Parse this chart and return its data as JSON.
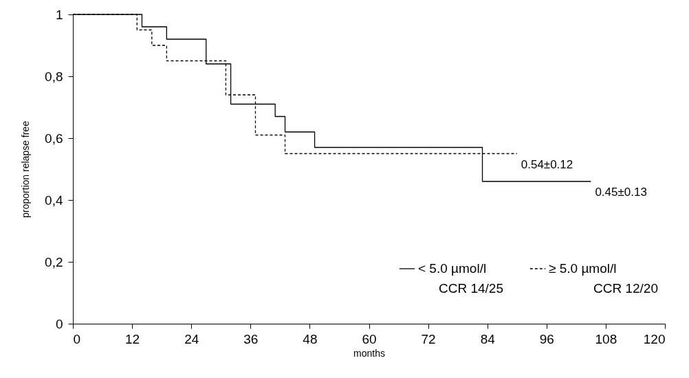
{
  "chart_data": {
    "type": "step",
    "xlabel": "months",
    "ylabel": "proportion relapse free",
    "series": [
      {
        "name": "< 5.0 µmol/l",
        "color": "#000000",
        "line_style": "solid",
        "x": [
          0,
          14,
          19,
          27,
          32,
          41,
          43,
          49,
          83,
          105
        ],
        "values": [
          1,
          0.96,
          0.92,
          0.84,
          0.71,
          0.67,
          0.62,
          0.57,
          0.46,
          0.46
        ]
      },
      {
        "name": "≥ 5.0 µmol/l",
        "color": "#000000",
        "line_style": "dashed",
        "x": [
          0,
          13,
          16,
          19,
          31,
          37,
          43,
          90
        ],
        "values": [
          1,
          0.95,
          0.9,
          0.85,
          0.74,
          0.61,
          0.55,
          0.55
        ]
      }
    ],
    "annotations": [
      {
        "text": "0.54±0.12",
        "x": 90,
        "y": 0.55
      },
      {
        "text": "0.45±0.13",
        "x": 105,
        "y": 0.46
      },
      "CCR 14/25",
      "CCR 12/20"
    ],
    "xlim": [
      0,
      120
    ],
    "xticks": [
      0,
      12,
      24,
      36,
      48,
      60,
      72,
      84,
      96,
      108,
      120
    ],
    "ylim": [
      0,
      1
    ],
    "yticks": [
      0,
      {
        "value": 0.2,
        "label": "0,2"
      },
      {
        "value": 0.4,
        "label": "0,4"
      },
      {
        "value": 0.6,
        "label": "0,6"
      },
      {
        "value": 0.8,
        "label": "0,8"
      },
      1
    ],
    "grid": false,
    "legend": "bottom right"
  }
}
